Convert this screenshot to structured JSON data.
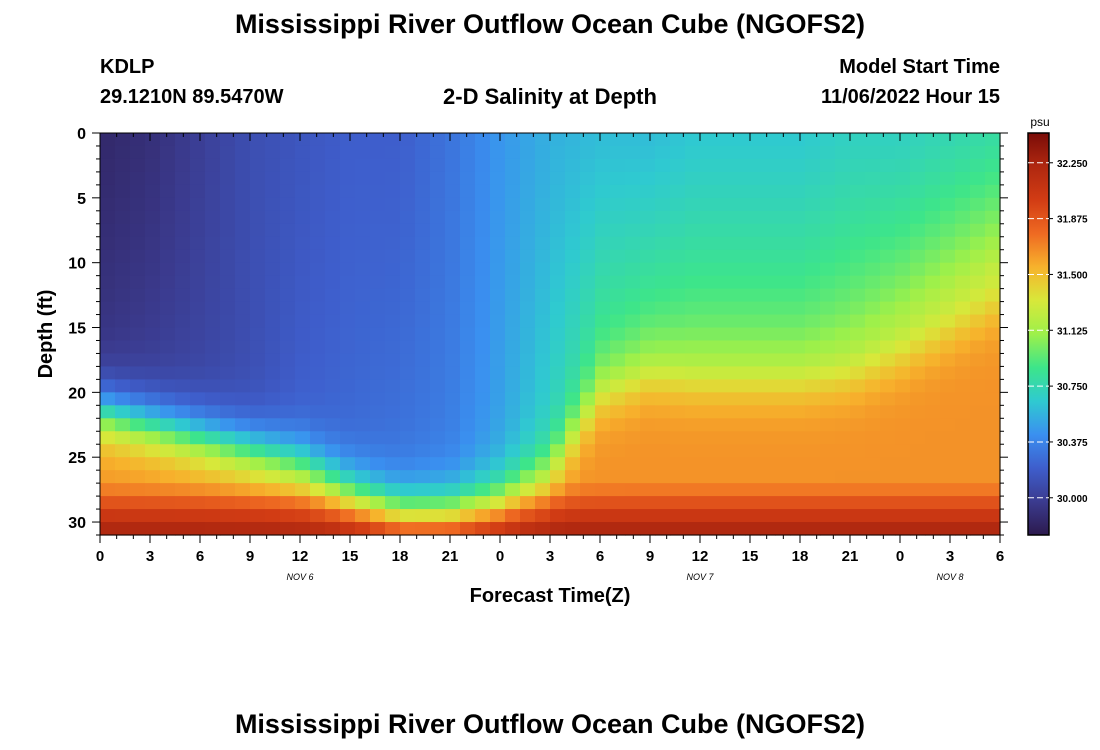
{
  "title": "Mississippi River Outflow Ocean Cube (NGOFS2)",
  "station": {
    "id": "KDLP",
    "coords": "29.1210N  89.5470W"
  },
  "subtitle": "2-D Salinity at Depth",
  "model_start": {
    "label": "Model Start Time",
    "value": "11/06/2022 Hour 15"
  },
  "footer_title": "Mississippi River Outflow Ocean Cube (NGOFS2)",
  "colorbar": {
    "unit": "psu",
    "min": 29.75,
    "max": 32.45,
    "ticks": [
      "30.000",
      "30.375",
      "30.750",
      "31.125",
      "31.500",
      "31.875",
      "32.250"
    ],
    "colors": [
      "#2c1a4d",
      "#3b3b8f",
      "#3e5ecc",
      "#3a90f0",
      "#2fcad0",
      "#3de58a",
      "#9df04a",
      "#d8e83a",
      "#f7b22c",
      "#ef6a22",
      "#d23c14",
      "#b02810",
      "#7a0c08"
    ]
  },
  "chart_data": {
    "type": "heatmap",
    "xlabel": "Forecast Time(Z)",
    "ylabel": "Depth (ft)",
    "x_ticks": [
      "0",
      "3",
      "6",
      "9",
      "12",
      "15",
      "18",
      "21",
      "0",
      "3",
      "6",
      "9",
      "12",
      "15",
      "18",
      "21",
      "0",
      "3",
      "6"
    ],
    "x_range_hours": [
      0,
      54
    ],
    "y_ticks": [
      "0",
      "5",
      "10",
      "15",
      "20",
      "25",
      "30"
    ],
    "y_range_ft": [
      0,
      31
    ],
    "y_inverted": true,
    "dates": [
      {
        "label": "NOV 6",
        "hour": 12
      },
      {
        "label": "NOV 7",
        "hour": 36
      },
      {
        "label": "NOV 8",
        "hour": 51
      }
    ],
    "interface_depth_ft": {
      "hours": [
        0,
        3,
        6,
        9,
        12,
        15,
        18,
        21,
        24,
        27,
        30,
        33,
        36,
        39,
        42,
        45,
        48,
        51,
        54
      ],
      "values": [
        21.5,
        22.5,
        23.5,
        24.5,
        25.5,
        27.5,
        29.0,
        29.0,
        28.0,
        26.0,
        20.0,
        18.5,
        19.0,
        19.0,
        19.0,
        18.5,
        17.0,
        15.0,
        13.0
      ]
    },
    "surface_salinity_psu": {
      "hours": [
        0,
        3,
        6,
        9,
        12,
        15,
        18,
        21,
        24,
        27,
        30,
        33,
        36,
        39,
        42,
        45,
        48,
        51,
        54
      ],
      "values": [
        29.85,
        29.9,
        30.0,
        30.1,
        30.15,
        30.2,
        30.2,
        30.3,
        30.45,
        30.55,
        30.6,
        30.6,
        30.65,
        30.65,
        30.65,
        30.7,
        30.7,
        30.75,
        30.8
      ]
    },
    "upper_layer_salinity_psu": {
      "hours": [
        0,
        3,
        6,
        9,
        12,
        15,
        18,
        21,
        24,
        27,
        30,
        33,
        36,
        39,
        42,
        45,
        48,
        51,
        54
      ],
      "values": [
        29.95,
        30.0,
        30.05,
        30.1,
        30.2,
        30.25,
        30.3,
        30.35,
        30.5,
        30.7,
        30.9,
        30.95,
        31.0,
        31.0,
        31.0,
        31.05,
        31.1,
        31.15,
        31.2
      ]
    },
    "deep_salinity_psu": 31.65,
    "bottom_salinity_psu": 32.3
  }
}
